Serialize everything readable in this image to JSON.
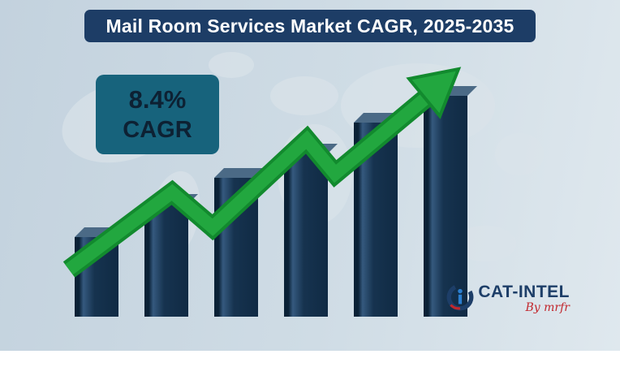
{
  "title": "Mail Room Services Market CAGR, 2025-2035",
  "badge": {
    "value": "8.4%",
    "label": "CAGR"
  },
  "logo": {
    "name": "CAT-INTEL",
    "byline": "By mrfr"
  },
  "colors": {
    "banner_bg": "#1d3d66",
    "badge_bg": "#17637c",
    "bar_navy": "#16334f",
    "arrow_green": "#22a73f",
    "background_blue": "#cfdce5",
    "logo_navy": "#1d3e68",
    "logo_red": "#c2272d"
  },
  "chart_data": {
    "type": "bar",
    "title": "Mail Room Services Market CAGR, 2025-2035",
    "values": [
      36,
      51,
      63,
      74,
      88,
      100
    ],
    "value_note": "relative bar heights, no axis or labels shown",
    "annotation": "8.4% CAGR",
    "trend": "upward zigzag arrow rising left to right",
    "grid": false,
    "legend": false
  }
}
